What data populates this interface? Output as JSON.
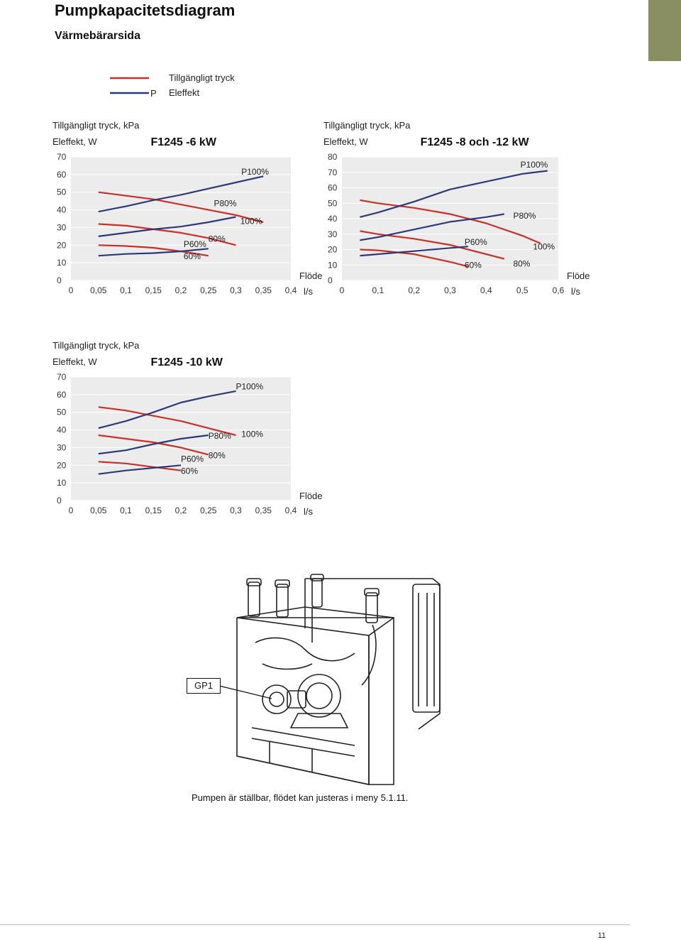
{
  "page": {
    "title": "Pumpkapacitetsdiagram",
    "subtitle": "Värmebärarsida",
    "page_number": "11",
    "caption": "Pumpen är ställbar, flödet kan justeras i meny 5.1.11.",
    "pump_label": "GP1"
  },
  "legend": {
    "red_label": "Tillgängligt tryck",
    "blue_marker": "P",
    "blue_label": "Eleffekt"
  },
  "colors": {
    "pressure": "#c8302a",
    "power": "#2e3a78",
    "accent_tab": "#8a8f63",
    "plot_bg": "#ececec"
  },
  "chart_data": [
    {
      "type": "line",
      "title": "F1245 -6 kW",
      "ylabel_1": "Tillgängligt tryck, kPa",
      "ylabel_2": "Eleffekt, W",
      "xlabel_1": "Flöde",
      "xlabel_2": "l/s",
      "xlim": [
        0,
        0.4
      ],
      "ylim": [
        0,
        70
      ],
      "xticks": [
        "0",
        "0,05",
        "0,1",
        "0,15",
        "0,2",
        "0,25",
        "0,3",
        "0,35",
        "0,4"
      ],
      "yticks": [
        "0",
        "10",
        "20",
        "30",
        "40",
        "50",
        "60",
        "70"
      ],
      "series": [
        {
          "name": "100%",
          "kind": "pressure",
          "x": [
            0.05,
            0.1,
            0.15,
            0.2,
            0.25,
            0.3,
            0.35
          ],
          "y": [
            50,
            48,
            46,
            43,
            40,
            37,
            33
          ]
        },
        {
          "name": "80%",
          "kind": "pressure",
          "x": [
            0.05,
            0.1,
            0.15,
            0.2,
            0.25,
            0.3
          ],
          "y": [
            32,
            31,
            29,
            27,
            24,
            20
          ]
        },
        {
          "name": "60%",
          "kind": "pressure",
          "x": [
            0.05,
            0.1,
            0.15,
            0.2,
            0.25
          ],
          "y": [
            20,
            19.5,
            18.5,
            16.5,
            14
          ]
        },
        {
          "name": "P100%",
          "kind": "power",
          "x": [
            0.05,
            0.1,
            0.15,
            0.2,
            0.25,
            0.3,
            0.35
          ],
          "y": [
            39,
            42,
            45.5,
            48.5,
            52,
            55.5,
            59
          ]
        },
        {
          "name": "P80%",
          "kind": "power",
          "x": [
            0.05,
            0.1,
            0.15,
            0.2,
            0.25,
            0.3
          ],
          "y": [
            25,
            27,
            29,
            30.5,
            33,
            36
          ]
        },
        {
          "name": "P60%",
          "kind": "power",
          "x": [
            0.05,
            0.1,
            0.15,
            0.2,
            0.25
          ],
          "y": [
            14,
            15,
            15.5,
            16.5,
            18
          ]
        }
      ],
      "annotations": [
        {
          "text": "P100%",
          "x": 0.31,
          "y": 60
        },
        {
          "text": "100%",
          "x": 0.308,
          "y": 32
        },
        {
          "text": "P80%",
          "x": 0.26,
          "y": 42
        },
        {
          "text": "80%",
          "x": 0.25,
          "y": 22
        },
        {
          "text": "P60%",
          "x": 0.205,
          "y": 19
        },
        {
          "text": "60%",
          "x": 0.205,
          "y": 12
        }
      ]
    },
    {
      "type": "line",
      "title": "F1245 -8 och -12 kW",
      "ylabel_1": "Tillgängligt tryck, kPa",
      "ylabel_2": "Eleffekt, W",
      "xlabel_1": "Flöde",
      "xlabel_2": "l/s",
      "xlim": [
        0,
        0.6
      ],
      "ylim": [
        0,
        80
      ],
      "xticks": [
        "0",
        "0,1",
        "0,2",
        "0,3",
        "0,4",
        "0,5",
        "0,6"
      ],
      "yticks": [
        "0",
        "10",
        "20",
        "30",
        "40",
        "50",
        "60",
        "70",
        "80"
      ],
      "series": [
        {
          "name": "100%",
          "kind": "pressure",
          "x": [
            0.05,
            0.1,
            0.2,
            0.3,
            0.4,
            0.5,
            0.55
          ],
          "y": [
            52,
            50,
            47,
            43,
            37,
            29,
            24
          ]
        },
        {
          "name": "80%",
          "kind": "pressure",
          "x": [
            0.05,
            0.1,
            0.2,
            0.3,
            0.4,
            0.45
          ],
          "y": [
            32,
            30,
            27,
            23,
            17,
            14
          ]
        },
        {
          "name": "60%",
          "kind": "pressure",
          "x": [
            0.05,
            0.1,
            0.2,
            0.3,
            0.35
          ],
          "y": [
            20,
            19.5,
            17,
            12,
            9
          ]
        },
        {
          "name": "P100%",
          "kind": "power",
          "x": [
            0.05,
            0.1,
            0.2,
            0.3,
            0.4,
            0.5,
            0.57
          ],
          "y": [
            41,
            44,
            51,
            59,
            64,
            69,
            71
          ]
        },
        {
          "name": "P80%",
          "kind": "power",
          "x": [
            0.05,
            0.1,
            0.2,
            0.3,
            0.4,
            0.45
          ],
          "y": [
            26,
            28,
            33,
            38,
            41,
            43
          ]
        },
        {
          "name": "P60%",
          "kind": "power",
          "x": [
            0.05,
            0.1,
            0.2,
            0.3,
            0.35
          ],
          "y": [
            16,
            17,
            19,
            21,
            22
          ]
        }
      ],
      "annotations": [
        {
          "text": "P100%",
          "x": 0.495,
          "y": 73
        },
        {
          "text": "P80%",
          "x": 0.475,
          "y": 40
        },
        {
          "text": "100%",
          "x": 0.53,
          "y": 20
        },
        {
          "text": "P60%",
          "x": 0.34,
          "y": 23
        },
        {
          "text": "80%",
          "x": 0.475,
          "y": 9
        },
        {
          "text": "60%",
          "x": 0.34,
          "y": 8
        }
      ]
    },
    {
      "type": "line",
      "title": "F1245 -10 kW",
      "ylabel_1": "Tillgängligt tryck, kPa",
      "ylabel_2": "Eleffekt, W",
      "xlabel_1": "Flöde",
      "xlabel_2": "l/s",
      "xlim": [
        0,
        0.4
      ],
      "ylim": [
        0,
        70
      ],
      "xticks": [
        "0",
        "0,05",
        "0,1",
        "0,15",
        "0,2",
        "0,25",
        "0,3",
        "0,35",
        "0,4"
      ],
      "yticks": [
        "0",
        "10",
        "20",
        "30",
        "40",
        "50",
        "60",
        "70"
      ],
      "series": [
        {
          "name": "100%",
          "kind": "pressure",
          "x": [
            0.05,
            0.1,
            0.15,
            0.2,
            0.25,
            0.3
          ],
          "y": [
            53,
            51,
            48,
            45,
            41,
            37
          ]
        },
        {
          "name": "80%",
          "kind": "pressure",
          "x": [
            0.05,
            0.1,
            0.15,
            0.2,
            0.25
          ],
          "y": [
            37,
            35,
            33,
            30,
            26
          ]
        },
        {
          "name": "60%",
          "kind": "pressure",
          "x": [
            0.05,
            0.1,
            0.15,
            0.2
          ],
          "y": [
            22,
            21,
            19,
            17
          ]
        },
        {
          "name": "P100%",
          "kind": "power",
          "x": [
            0.05,
            0.1,
            0.15,
            0.2,
            0.25,
            0.3
          ],
          "y": [
            41,
            45,
            50,
            55.5,
            59,
            62
          ]
        },
        {
          "name": "P80%",
          "kind": "power",
          "x": [
            0.05,
            0.1,
            0.15,
            0.2,
            0.25
          ],
          "y": [
            26.5,
            28.5,
            32,
            35,
            37
          ]
        },
        {
          "name": "P60%",
          "kind": "power",
          "x": [
            0.05,
            0.1,
            0.15,
            0.2
          ],
          "y": [
            15,
            17,
            18.5,
            20
          ]
        }
      ],
      "annotations": [
        {
          "text": "P100%",
          "x": 0.3,
          "y": 63
        },
        {
          "text": "P80%",
          "x": 0.25,
          "y": 35
        },
        {
          "text": "100%",
          "x": 0.31,
          "y": 36
        },
        {
          "text": "80%",
          "x": 0.25,
          "y": 24
        },
        {
          "text": "P60%",
          "x": 0.2,
          "y": 22
        },
        {
          "text": "60%",
          "x": 0.2,
          "y": 15
        }
      ]
    }
  ]
}
